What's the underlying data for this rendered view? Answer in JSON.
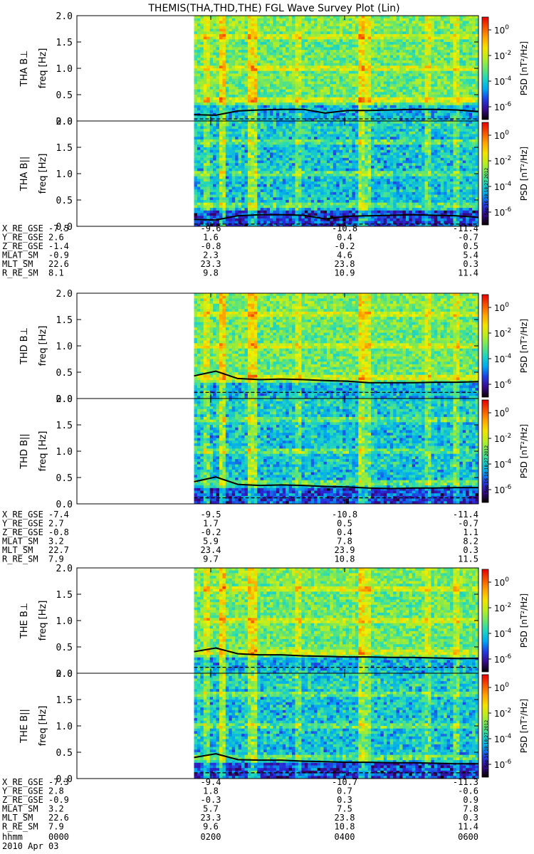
{
  "title": "THEMIS(THA,THD,THE) FGL Wave Survey Plot (Lin)",
  "timestamp": "Sun Sep 16 18:18:27 2012",
  "colorbar": {
    "label": "PSD [nT²/Hz]",
    "ticks": [
      {
        "base": "10",
        "exp": "0"
      },
      {
        "base": "10",
        "exp": "-2"
      },
      {
        "base": "10",
        "exp": "-4"
      },
      {
        "base": "10",
        "exp": "-6"
      }
    ]
  },
  "chart_data": {
    "type": "heatmap",
    "x_axis": {
      "label": "hhmm",
      "ticks": [
        "0000",
        "0200",
        "0400",
        "0600"
      ],
      "date": "2010 Apr 03"
    },
    "y_axis": {
      "label": "freq [Hz]",
      "ylim": [
        0,
        2.0
      ],
      "ticks": [
        "0.0",
        "0.5",
        "1.0",
        "1.5",
        "2.0"
      ]
    },
    "data_start_hhmm": "0145",
    "panels": [
      {
        "probe": "THA",
        "component": "B⊥",
        "ylabel": "THA B⊥",
        "line_values": [
          0.12,
          0.11,
          0.19,
          0.21,
          0.22,
          0.22,
          0.15,
          0.2,
          0.2,
          0.21,
          0.22,
          0.22,
          0.21,
          0.18
        ]
      },
      {
        "probe": "THA",
        "component": "B∥",
        "ylabel": "THA B||",
        "line_values": [
          0.13,
          0.12,
          0.2,
          0.22,
          0.22,
          0.21,
          0.14,
          0.19,
          0.2,
          0.21,
          0.22,
          0.21,
          0.2,
          0.17
        ]
      },
      {
        "probe": "THD",
        "component": "B⊥",
        "ylabel": "THD B⊥",
        "line_values": [
          0.43,
          0.52,
          0.38,
          0.36,
          0.37,
          0.36,
          0.34,
          0.33,
          0.3,
          0.3,
          0.3,
          0.31,
          0.31,
          0.32
        ]
      },
      {
        "probe": "THD",
        "component": "B∥",
        "ylabel": "THD B||",
        "line_values": [
          0.42,
          0.51,
          0.37,
          0.35,
          0.36,
          0.35,
          0.33,
          0.32,
          0.3,
          0.29,
          0.3,
          0.3,
          0.31,
          0.31
        ]
      },
      {
        "probe": "THE",
        "component": "B⊥",
        "ylabel": "THE B⊥",
        "line_values": [
          0.41,
          0.48,
          0.37,
          0.35,
          0.35,
          0.33,
          0.32,
          0.31,
          0.31,
          0.3,
          0.3,
          0.29,
          0.28,
          0.28
        ]
      },
      {
        "probe": "THE",
        "component": "B∥",
        "ylabel": "THE B||",
        "line_values": [
          0.4,
          0.47,
          0.36,
          0.35,
          0.35,
          0.33,
          0.32,
          0.31,
          0.31,
          0.3,
          0.3,
          0.29,
          0.28,
          0.28
        ]
      }
    ],
    "ephemeris_groups": [
      {
        "probe": "THA",
        "rows": [
          {
            "label": "X_RE_GSE",
            "values": [
              "-7.5",
              "-9.6",
              "-10.8",
              "-11.4"
            ]
          },
          {
            "label": "Y_RE_GSE",
            "values": [
              "2.6",
              "1.6",
              "0.4",
              "-0.7"
            ]
          },
          {
            "label": "Z_RE_GSE",
            "values": [
              "-1.4",
              "-0.8",
              "-0.2",
              "0.5"
            ]
          },
          {
            "label": "MLAT_SM",
            "values": [
              "-0.9",
              "2.3",
              "4.6",
              "5.4"
            ]
          },
          {
            "label": "MLT_SM",
            "values": [
              "22.6",
              "23.3",
              "23.8",
              "0.3"
            ]
          },
          {
            "label": "R_RE_SM",
            "values": [
              "8.1",
              "9.8",
              "10.9",
              "11.4"
            ]
          }
        ]
      },
      {
        "probe": "THD",
        "rows": [
          {
            "label": "X_RE_GSE",
            "values": [
              "-7.4",
              "-9.5",
              "-10.8",
              "-11.4"
            ]
          },
          {
            "label": "Y_RE_GSE",
            "values": [
              "2.7",
              "1.7",
              "0.5",
              "-0.7"
            ]
          },
          {
            "label": "Z_RE_GSE",
            "values": [
              "-0.8",
              "-0.2",
              "0.4",
              "1.1"
            ]
          },
          {
            "label": "MLAT_SM",
            "values": [
              "3.2",
              "5.9",
              "7.8",
              "8.2"
            ]
          },
          {
            "label": "MLT_SM",
            "values": [
              "22.7",
              "23.4",
              "23.9",
              "0.3"
            ]
          },
          {
            "label": "R_RE_SM",
            "values": [
              "7.9",
              "9.7",
              "10.8",
              "11.5"
            ]
          }
        ]
      },
      {
        "probe": "THE",
        "rows": [
          {
            "label": "X_RE_GSE",
            "values": [
              "-7.3",
              "-9.4",
              "-10.7",
              "-11.3"
            ]
          },
          {
            "label": "Y_RE_GSE",
            "values": [
              "2.8",
              "1.8",
              "0.7",
              "-0.6"
            ]
          },
          {
            "label": "Z_RE_GSE",
            "values": [
              "-0.9",
              "-0.3",
              "0.3",
              "0.9"
            ]
          },
          {
            "label": "MLAT_SM",
            "values": [
              "3.2",
              "5.7",
              "7.5",
              "7.8"
            ]
          },
          {
            "label": "MLT_SM",
            "values": [
              "22.6",
              "23.3",
              "23.8",
              "0.3"
            ]
          },
          {
            "label": "R_RE_SM",
            "values": [
              "7.9",
              "9.6",
              "10.8",
              "11.4"
            ]
          }
        ]
      }
    ]
  }
}
